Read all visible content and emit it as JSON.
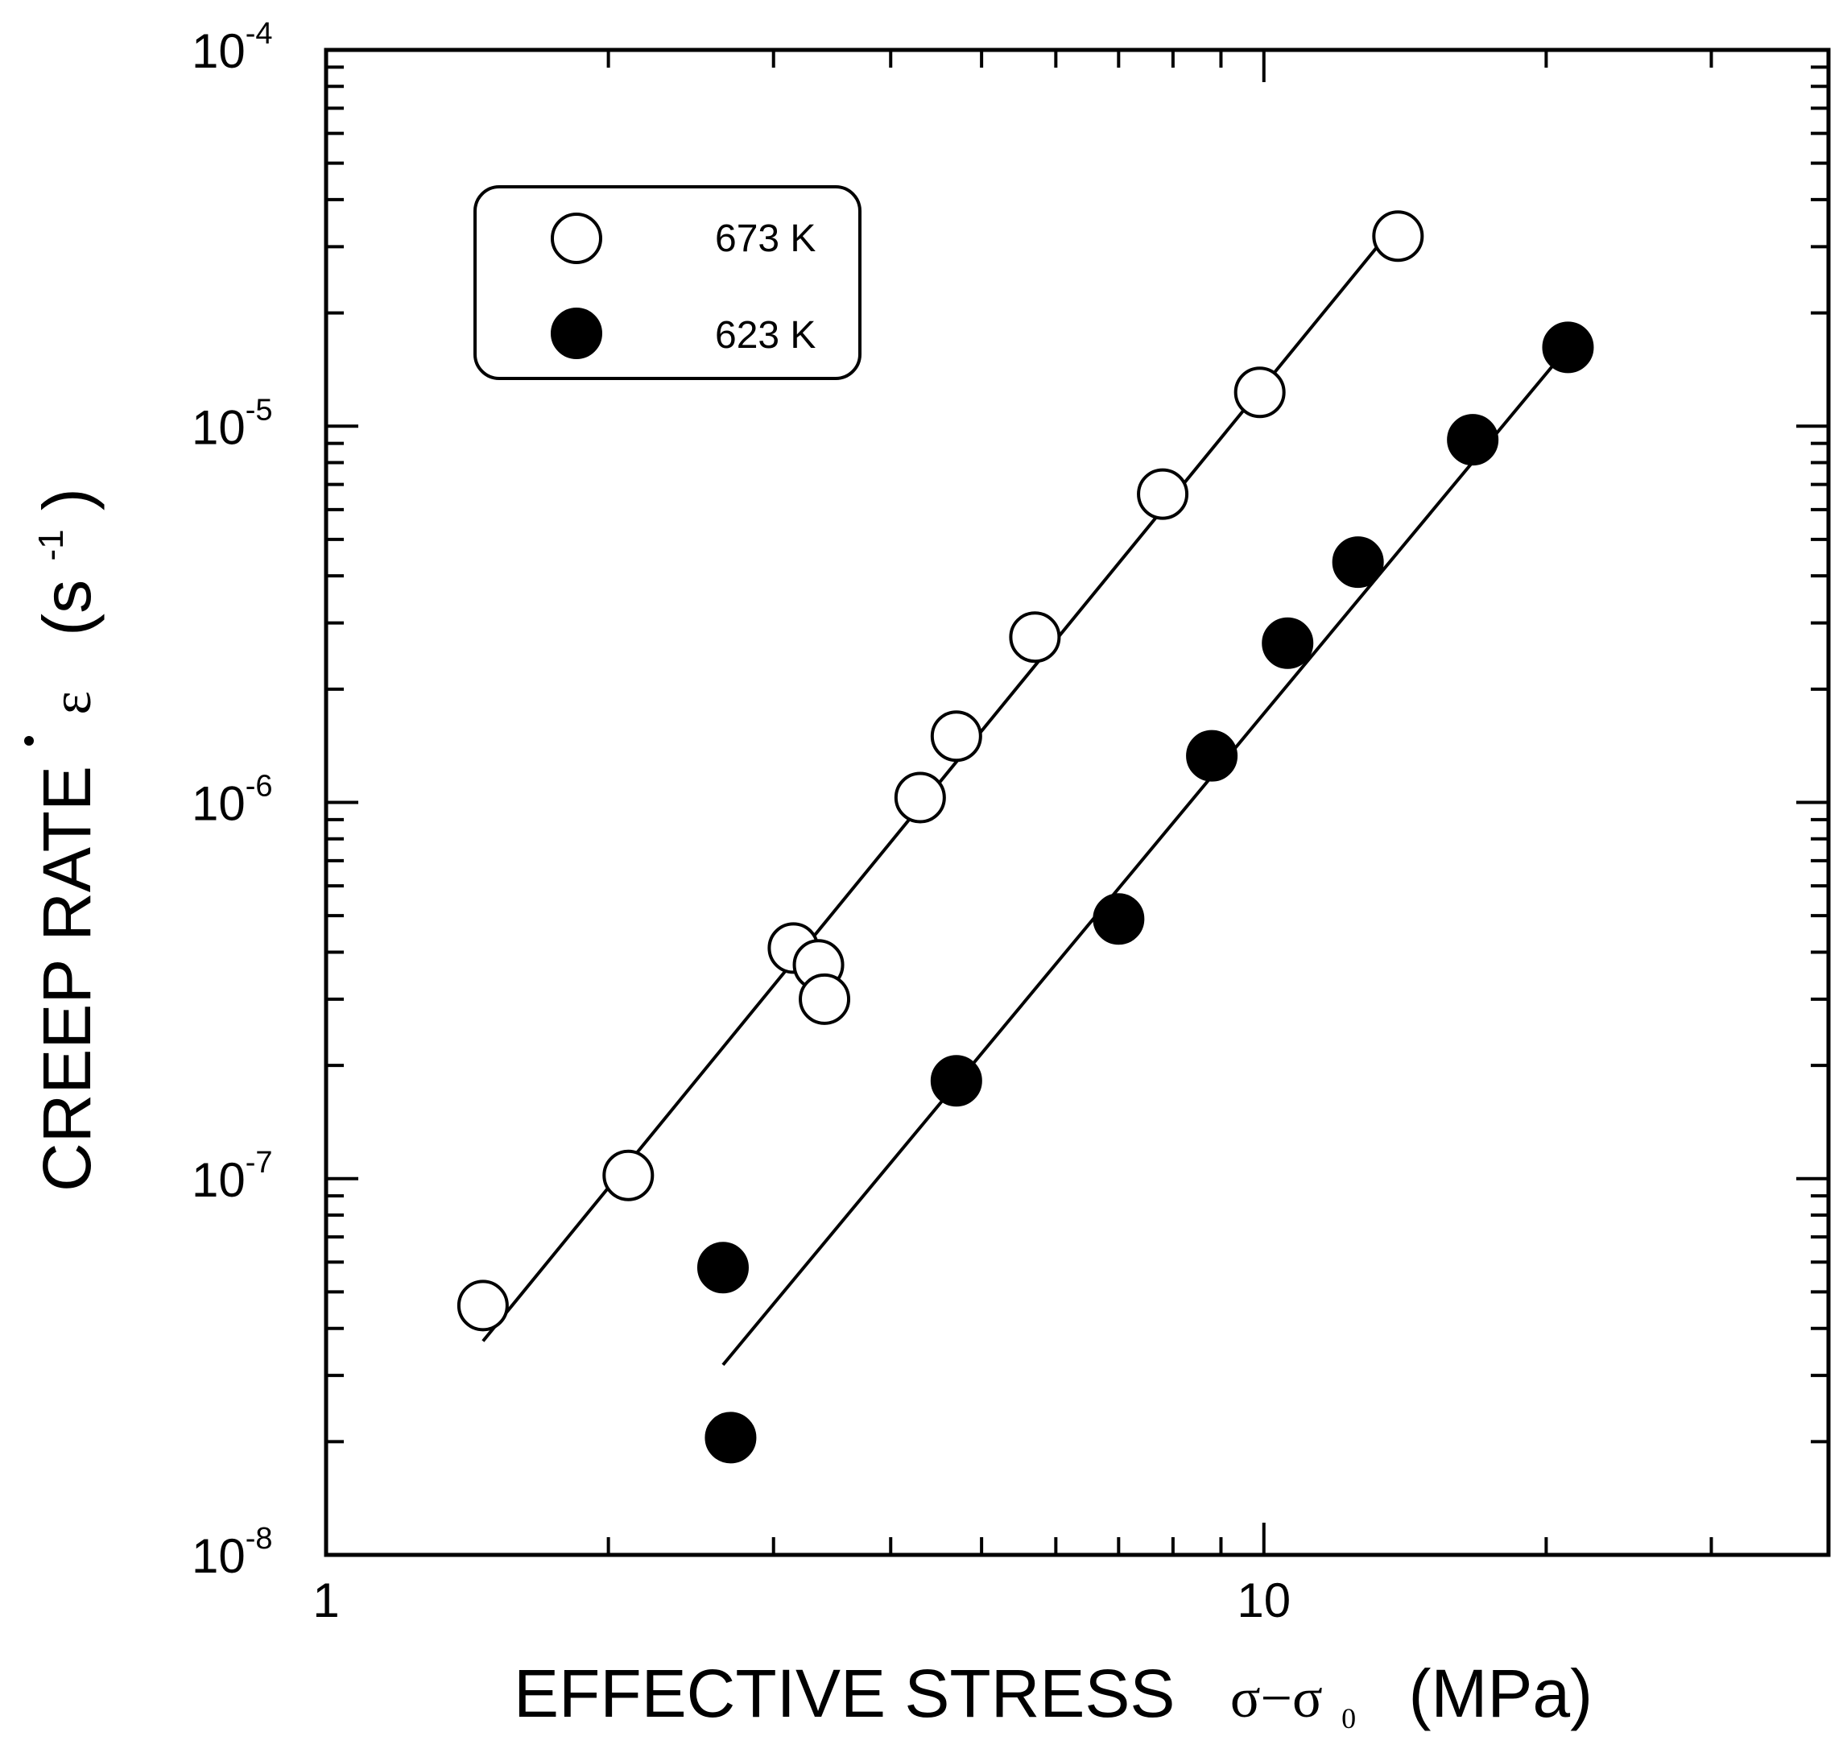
{
  "chart_data": {
    "type": "scatter",
    "xscale": "log",
    "yscale": "log",
    "xlim": [
      1,
      40
    ],
    "ylim": [
      1e-08,
      0.0001
    ],
    "xlabel": "EFFECTIVE STRESS  σ−σ₀  (MPa)",
    "xlabel_parts": {
      "text": "EFFECTIVE STRESS",
      "sigma": "σ−σ",
      "subscript": "0",
      "unit": "(MPa)"
    },
    "ylabel": "CREEP RATE  ε̇  (s⁻¹)",
    "ylabel_parts": {
      "text": "CREEP RATE",
      "epsilon": "ε",
      "unit_open": "(s",
      "unit_exp": "-1",
      "unit_close": ")"
    },
    "x_tick_labels": [
      {
        "value": 1,
        "label": "1"
      },
      {
        "value": 10,
        "label": "10"
      }
    ],
    "y_tick_labels": [
      {
        "value": 0.0001,
        "base": "10",
        "exp": "-4"
      },
      {
        "value": 1e-05,
        "base": "10",
        "exp": "-5"
      },
      {
        "value": 1e-06,
        "base": "10",
        "exp": "-6"
      },
      {
        "value": 1e-07,
        "base": "10",
        "exp": "-7"
      },
      {
        "value": 1e-08,
        "base": "10",
        "exp": "-8"
      }
    ],
    "legend_position": "top-left",
    "series": [
      {
        "name": "673 K",
        "marker": "open-circle",
        "points": [
          [
            1.47,
            4.6e-08
          ],
          [
            2.1,
            1.02e-07
          ],
          [
            3.15,
            4.1e-07
          ],
          [
            3.35,
            3.7e-07
          ],
          [
            3.4,
            3e-07
          ],
          [
            4.3,
            1.03e-06
          ],
          [
            4.7,
            1.5e-06
          ],
          [
            5.7,
            2.75e-06
          ],
          [
            7.8,
            6.6e-06
          ],
          [
            9.9,
            1.23e-05
          ],
          [
            13.9,
            3.2e-05
          ]
        ],
        "fit_line": [
          [
            1.47,
            3.7e-08
          ],
          [
            13.7,
            3.35e-05
          ]
        ]
      },
      {
        "name": "623 K",
        "marker": "filled-circle",
        "points": [
          [
            2.65,
            5.8e-08
          ],
          [
            2.7,
            2.05e-08
          ],
          [
            4.7,
            1.82e-07
          ],
          [
            7.0,
            4.9e-07
          ],
          [
            8.8,
            1.33e-06
          ],
          [
            10.6,
            2.65e-06
          ],
          [
            12.6,
            4.35e-06
          ],
          [
            16.7,
            9.2e-06
          ],
          [
            21.1,
            1.62e-05
          ]
        ],
        "fit_line": [
          [
            2.65,
            3.2e-08
          ],
          [
            21.1,
            1.62e-05
          ]
        ]
      }
    ]
  },
  "colors": {
    "ink": "#000000",
    "background": "#ffffff"
  }
}
